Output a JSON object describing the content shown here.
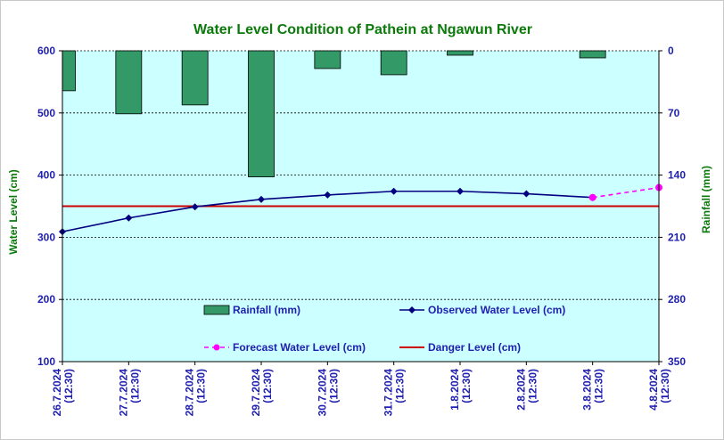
{
  "chart_data": {
    "type": "bar+line",
    "title": "Water Level Condition of Pathein at Ngawun River",
    "categories": [
      "26.7.2024\n(12:30)",
      "27.7.2024\n(12:30)",
      "28.7.2024\n(12:30)",
      "29.7.2024\n(12:30)",
      "30.7.2024\n(12:30)",
      "31.7.2024\n(12:30)",
      "1.8.2024\n(12:30)",
      "2.8.2024\n(12:30)",
      "3.8.2024\n(12:30)",
      "4.8.2024\n(12:30)"
    ],
    "ylabel_left": "Water Level (cm)",
    "ylabel_right": "Rainfall (mm)",
    "ylim_left": [
      100,
      600
    ],
    "yticks_left": [
      100,
      200,
      300,
      400,
      500,
      600
    ],
    "ylim_right_inverted": [
      0,
      350
    ],
    "yticks_right": [
      0,
      70,
      140,
      210,
      280,
      350
    ],
    "grid": "horizontal dashed",
    "series": [
      {
        "name": "Rainfall (mm)",
        "kind": "bar",
        "axis": "right",
        "color": "#339966",
        "values": [
          45,
          71,
          61,
          142,
          20,
          27,
          5,
          null,
          8,
          null
        ]
      },
      {
        "name": "Observed Water Level (cm)",
        "kind": "line",
        "axis": "left",
        "color": "#000080",
        "values": [
          309,
          331,
          349,
          361,
          368,
          374,
          374,
          370,
          364,
          null
        ]
      },
      {
        "name": "Forecast Water Level (cm)",
        "kind": "dashed-line",
        "axis": "left",
        "color": "#ff00ff",
        "values": [
          null,
          null,
          null,
          null,
          null,
          null,
          null,
          null,
          364,
          380
        ]
      },
      {
        "name": "Danger Level (cm)",
        "kind": "hline",
        "axis": "left",
        "color": "#cc0000",
        "value": 350
      }
    ],
    "legend_position": "inside-bottom"
  },
  "colors": {
    "plot_bg": "#ccffff",
    "title": "#0b7a0b",
    "tick_text": "#1f1fb0"
  }
}
